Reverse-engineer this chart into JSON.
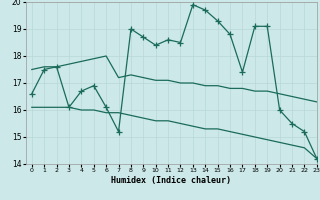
{
  "xlabel": "Humidex (Indice chaleur)",
  "xlim": [
    -0.5,
    23
  ],
  "ylim": [
    14,
    20
  ],
  "yticks": [
    14,
    15,
    16,
    17,
    18,
    19,
    20
  ],
  "xticks": [
    0,
    1,
    2,
    3,
    4,
    5,
    6,
    7,
    8,
    9,
    10,
    11,
    12,
    13,
    14,
    15,
    16,
    17,
    18,
    19,
    20,
    21,
    22,
    23
  ],
  "bg_color": "#cce8e8",
  "line_color": "#1a6b5a",
  "grid_color": "#b8d8d8",
  "line_jagged": [
    16.6,
    17.5,
    17.6,
    16.1,
    16.7,
    16.9,
    16.1,
    15.2,
    19.0,
    18.7,
    18.4,
    18.6,
    18.5,
    19.9,
    19.7,
    19.3,
    18.8,
    17.4,
    19.1,
    19.1,
    16.0,
    15.5,
    15.2,
    14.2
  ],
  "line_smooth_upper": [
    17.5,
    17.6,
    17.6,
    17.7,
    17.8,
    17.9,
    18.0,
    17.2,
    17.3,
    17.2,
    17.1,
    17.1,
    17.0,
    17.0,
    16.9,
    16.9,
    16.8,
    16.8,
    16.7,
    16.7,
    16.6,
    16.5,
    16.4,
    16.3
  ],
  "line_smooth_lower": [
    16.1,
    16.1,
    16.1,
    16.1,
    16.0,
    16.0,
    15.9,
    15.9,
    15.8,
    15.7,
    15.6,
    15.6,
    15.5,
    15.4,
    15.3,
    15.3,
    15.2,
    15.1,
    15.0,
    14.9,
    14.8,
    14.7,
    14.6,
    14.2
  ]
}
